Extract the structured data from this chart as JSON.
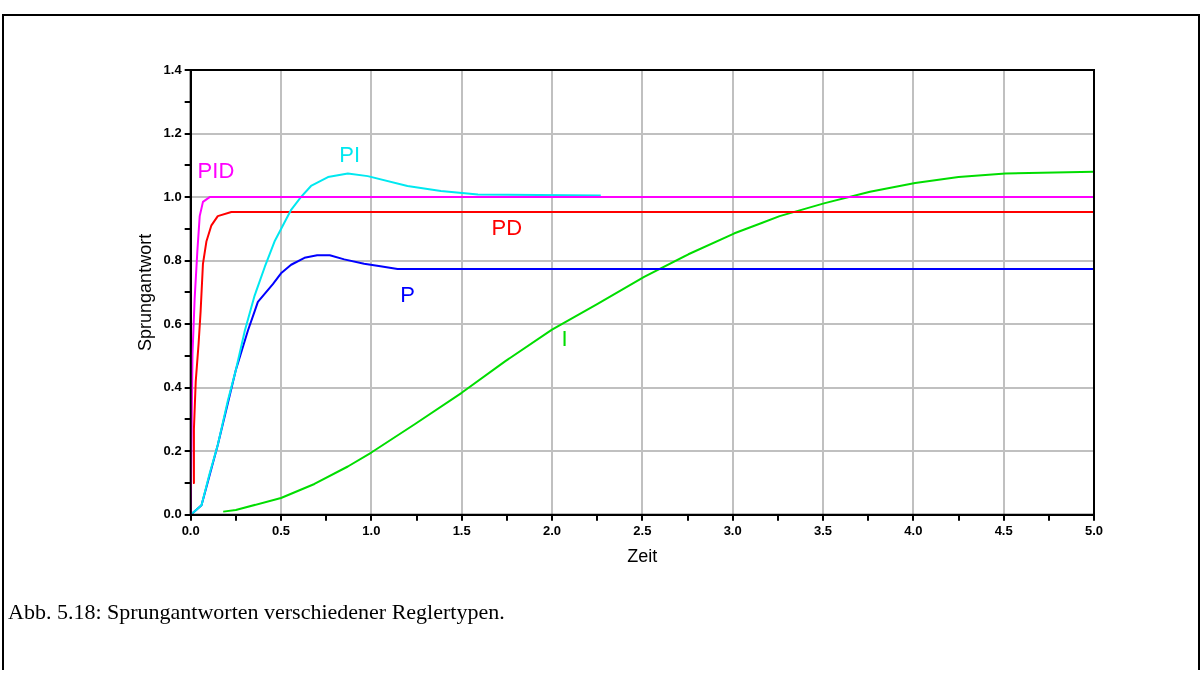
{
  "chart_data": {
    "type": "line",
    "xlabel": "Zeit",
    "ylabel": "Sprungantwort",
    "annotations": [
      "Abb. 5.18: Sprungantworten verschiedener Reglertypen."
    ],
    "xlim": [
      0,
      5
    ],
    "ylim": [
      0,
      1.4
    ],
    "xticks": [
      {
        "value": 0,
        "label": "0.0"
      },
      {
        "value": 0.25,
        "label": null
      },
      {
        "value": 0.5,
        "label": "0.5"
      },
      {
        "value": 0.75,
        "label": null
      },
      {
        "value": 1,
        "label": "1.0"
      },
      {
        "value": 1.25,
        "label": null
      },
      {
        "value": 1.5,
        "label": "1.5"
      },
      {
        "value": 1.75,
        "label": null
      },
      {
        "value": 2,
        "label": "2.0"
      },
      {
        "value": 2.25,
        "label": null
      },
      {
        "value": 2.5,
        "label": "2.5"
      },
      {
        "value": 2.75,
        "label": null
      },
      {
        "value": 3,
        "label": "3.0"
      },
      {
        "value": 3.25,
        "label": null
      },
      {
        "value": 3.5,
        "label": "3.5"
      },
      {
        "value": 3.75,
        "label": null
      },
      {
        "value": 4,
        "label": "4.0"
      },
      {
        "value": 4.25,
        "label": null
      },
      {
        "value": 4.5,
        "label": "4.5"
      },
      {
        "value": 4.75,
        "label": null
      },
      {
        "value": 5,
        "label": "5.0"
      }
    ],
    "yticks": [
      {
        "value": 0,
        "label": "0.0"
      },
      {
        "value": 0.1,
        "label": null
      },
      {
        "value": 0.2,
        "label": "0.2"
      },
      {
        "value": 0.3,
        "label": null
      },
      {
        "value": 0.4,
        "label": "0.4"
      },
      {
        "value": 0.5,
        "label": null
      },
      {
        "value": 0.6,
        "label": "0.6"
      },
      {
        "value": 0.7,
        "label": null
      },
      {
        "value": 0.8,
        "label": "0.8"
      },
      {
        "value": 0.9,
        "label": null
      },
      {
        "value": 1,
        "label": "1.0"
      },
      {
        "value": 1.1,
        "label": null
      },
      {
        "value": 1.2,
        "label": "1.2"
      },
      {
        "value": 1.3,
        "label": null
      },
      {
        "value": 1.4,
        "label": "1.4"
      }
    ],
    "grid": true,
    "legend": false,
    "marker": "none",
    "line_style": "solid",
    "series": [
      {
        "name": "PID",
        "color": "#ff00ff",
        "x": [
          0,
          0.01,
          0.022,
          0.037,
          0.05,
          0.068,
          0.105,
          5
        ],
        "values": [
          0,
          0.505,
          0.68,
          0.83,
          0.94,
          0.985,
          1.0,
          1.0
        ]
      },
      {
        "name": "PI",
        "color": "#00e8f0",
        "x": [
          0,
          0.06,
          0.105,
          0.15,
          0.206,
          0.25,
          0.3,
          0.354,
          0.41,
          0.464,
          0.556,
          0.61,
          0.666,
          0.76,
          0.87,
          0.98,
          1.2,
          1.385,
          1.59,
          2.27
        ],
        "values": [
          0,
          0.03,
          0.13,
          0.22,
          0.36,
          0.456,
          0.58,
          0.69,
          0.78,
          0.86,
          0.96,
          1.0,
          1.035,
          1.063,
          1.074,
          1.066,
          1.035,
          1.019,
          1.008,
          1.005
        ]
      },
      {
        "name": "PD",
        "color": "#ff0000",
        "x": [
          0.013,
          0.018,
          0.028,
          0.044,
          0.055,
          0.068,
          0.087,
          0.114,
          0.15,
          0.225,
          5
        ],
        "values": [
          0.1,
          0.27,
          0.42,
          0.54,
          0.64,
          0.79,
          0.86,
          0.91,
          0.94,
          0.953,
          0.953
        ]
      },
      {
        "name": "P",
        "color": "#0000ff",
        "x": [
          0,
          0.06,
          0.15,
          0.25,
          0.317,
          0.372,
          0.455,
          0.5,
          0.556,
          0.63,
          0.7,
          0.77,
          0.85,
          0.96,
          1.05,
          1.145,
          5
        ],
        "values": [
          0,
          0.03,
          0.22,
          0.456,
          0.58,
          0.67,
          0.726,
          0.76,
          0.787,
          0.809,
          0.817,
          0.817,
          0.804,
          0.79,
          0.782,
          0.774,
          0.774
        ]
      },
      {
        "name": "I",
        "color": "#00dd00",
        "x": [
          0.18,
          0.25,
          0.5,
          0.685,
          0.87,
          1.0,
          1.24,
          1.5,
          1.74,
          2.0,
          2.25,
          2.51,
          2.755,
          3.01,
          3.26,
          3.51,
          3.76,
          4.01,
          4.25,
          4.51,
          5.0
        ],
        "values": [
          0.01,
          0.015,
          0.053,
          0.097,
          0.152,
          0.196,
          0.285,
          0.384,
          0.483,
          0.583,
          0.663,
          0.749,
          0.82,
          0.886,
          0.94,
          0.981,
          1.017,
          1.044,
          1.063,
          1.074,
          1.08
        ]
      }
    ]
  }
}
